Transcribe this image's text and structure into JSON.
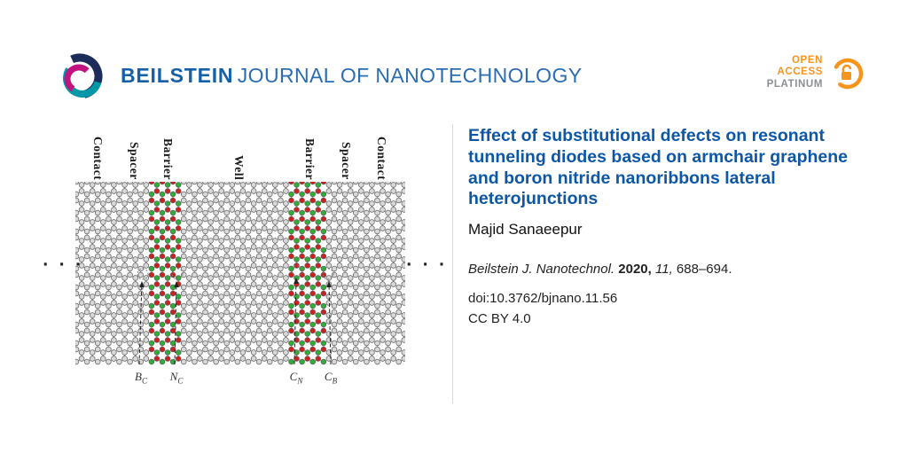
{
  "header": {
    "brand_bold": "BEILSTEIN",
    "brand_rest": "JOURNAL OF NANOTECHNOLOGY",
    "open_access": {
      "line1": "OPEN",
      "line2": "ACCESS",
      "line3": "PLATINUM"
    },
    "colors": {
      "brand_blue": "#1560a8",
      "oa_orange": "#f7941e",
      "oa_gray": "#8b8f92"
    }
  },
  "figure": {
    "region_labels": [
      "Contact",
      "Spacer",
      "Barrier",
      "Well",
      "Barrier",
      "Spacer",
      "Contact"
    ],
    "ellipsis_left": "· · ·",
    "ellipsis_right": "· · ·",
    "defect_labels": [
      {
        "main": "B",
        "sub": "C"
      },
      {
        "main": "N",
        "sub": "C"
      },
      {
        "main": "C",
        "sub": "N"
      },
      {
        "main": "C",
        "sub": "B"
      }
    ],
    "colors": {
      "carbon": "#d8d8d8",
      "boron": "#2eae35",
      "nitrogen": "#d01f1f",
      "bond": "#999999"
    }
  },
  "article": {
    "title": "Effect of substitutional defects on resonant tunneling diodes based on armchair graphene and boron nitride nanoribbons lateral heterojunctions",
    "author": "Majid Sanaeepur",
    "citation": {
      "journal": "Beilstein J. Nanotechnol.",
      "year": "2020,",
      "volume": "11,",
      "pages": "688–694."
    },
    "doi": "doi:10.3762/bjnano.11.56",
    "license": "CC BY 4.0"
  }
}
